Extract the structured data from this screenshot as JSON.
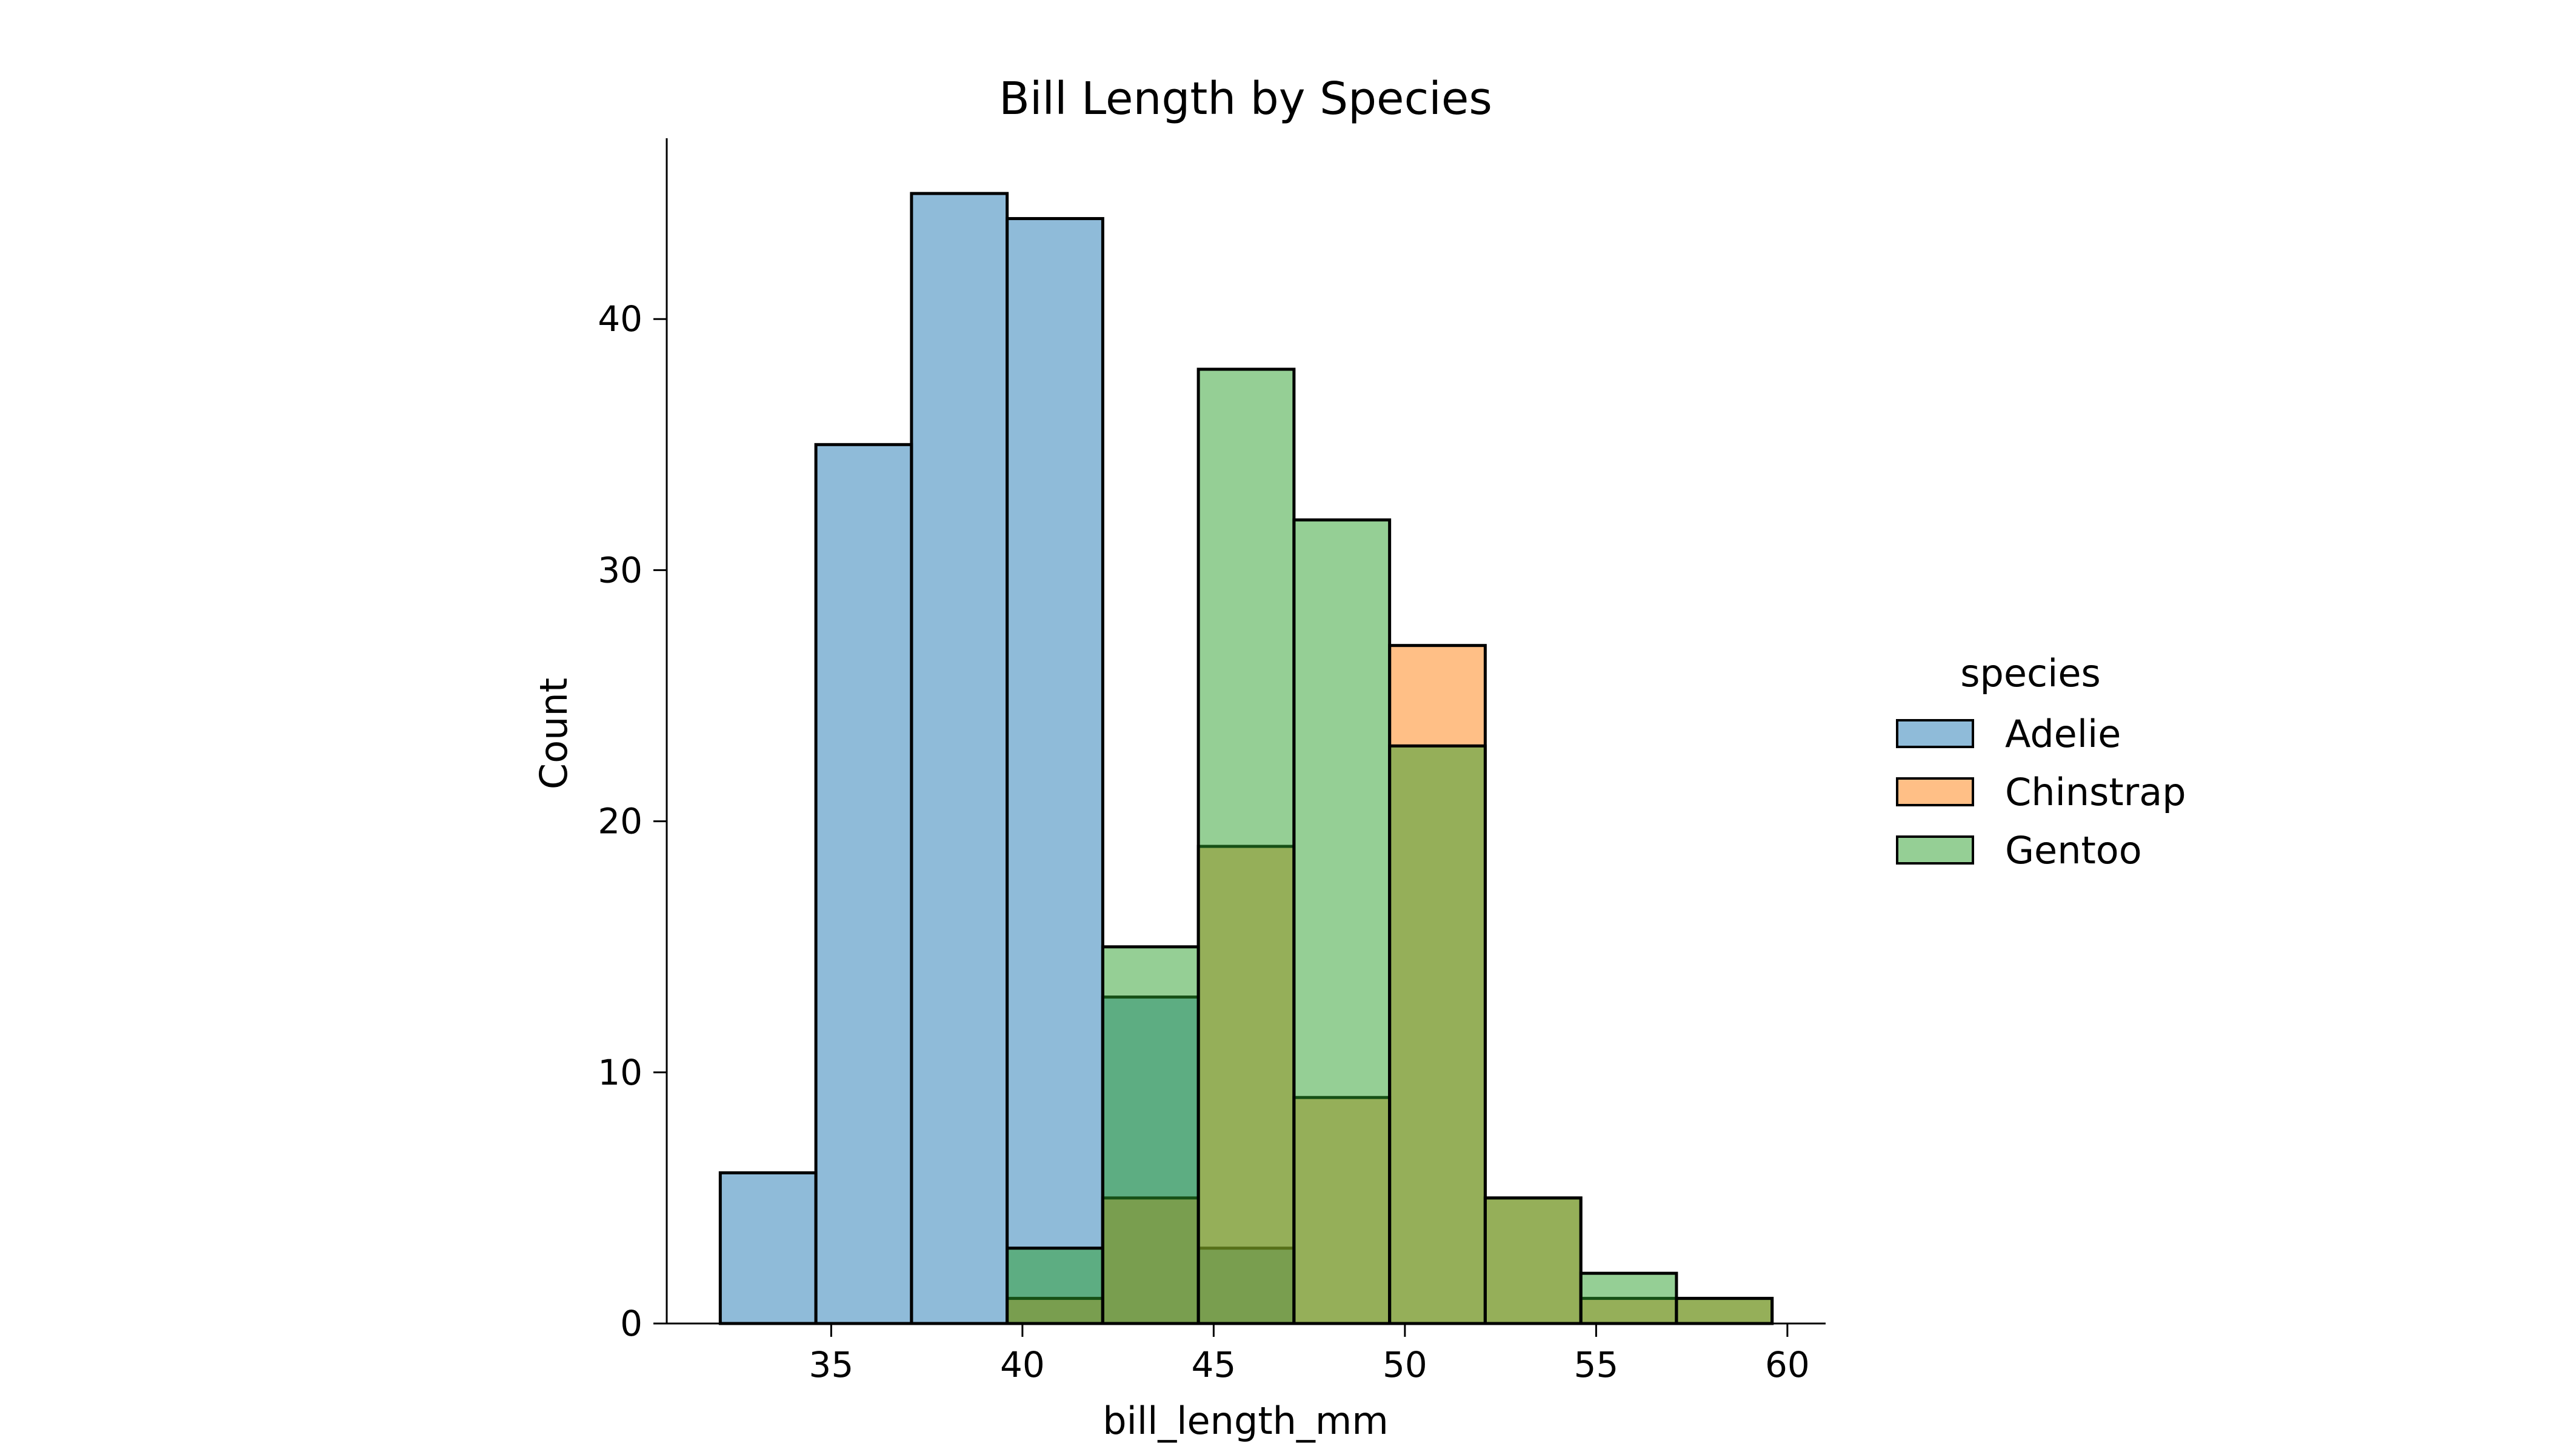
{
  "chart_data": {
    "type": "bar",
    "subtype": "histogram",
    "title": "Bill Length by Species",
    "xlabel": "bill_length_mm",
    "ylabel": "Count",
    "xlim": [
      30.7,
      61.0
    ],
    "ylim": [
      0,
      47.2
    ],
    "xticks": [
      35,
      40,
      45,
      50,
      55,
      60
    ],
    "yticks": [
      0,
      10,
      20,
      30,
      40
    ],
    "grid": false,
    "legend": {
      "title": "species",
      "placement": "center-right"
    },
    "bin_edges": [
      32.1,
      34.6,
      37.1,
      39.6,
      42.1,
      44.6,
      47.1,
      49.6,
      52.1,
      54.6,
      57.1,
      59.6
    ],
    "series": [
      {
        "name": "Adelie",
        "color": "#1f77b4",
        "values": [
          6,
          35,
          45,
          44,
          13,
          3,
          0,
          0,
          0,
          0,
          0
        ]
      },
      {
        "name": "Chinstrap",
        "color": "#ff7f0e",
        "values": [
          0,
          0,
          0,
          1,
          5,
          19,
          9,
          27,
          5,
          1,
          1
        ]
      },
      {
        "name": "Gentoo",
        "color": "#2ca02c",
        "values": [
          0,
          0,
          0,
          3,
          15,
          38,
          32,
          23,
          5,
          2,
          1
        ]
      }
    ]
  }
}
